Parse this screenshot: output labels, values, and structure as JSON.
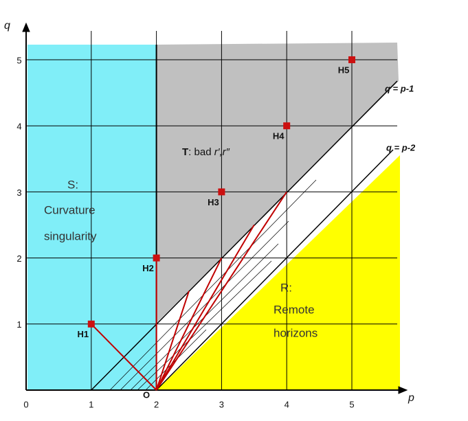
{
  "axes": {
    "x_label": "p",
    "y_label": "q",
    "origin_label": "O",
    "x_ticks": [
      "0",
      "1",
      "2",
      "3",
      "4",
      "5"
    ],
    "y_ticks": [
      "1",
      "2",
      "3",
      "4",
      "5"
    ]
  },
  "lines": [
    "q = p-1",
    "q = p-2"
  ],
  "points": [
    "H1",
    "H2",
    "H3",
    "H4",
    "H5"
  ],
  "regions": {
    "S": {
      "title": "S:",
      "lines": [
        "Curvature",
        "singularity"
      ]
    },
    "T": {
      "title": "T",
      "text": ": bad ",
      "vars": "r′,r″"
    },
    "R": {
      "title": "R:",
      "lines": [
        "Remote",
        "horizons"
      ]
    }
  }
}
